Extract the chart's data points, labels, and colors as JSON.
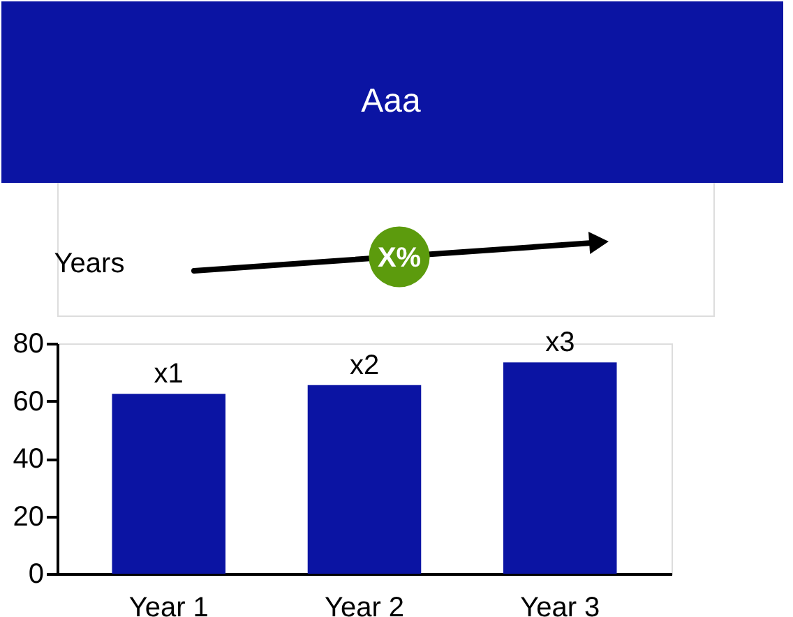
{
  "chart_data": {
    "type": "bar",
    "title": "Aaa",
    "annotations": [
      "Years",
      "X%"
    ],
    "categories": [
      "Year 1",
      "Year 2",
      "Year 3"
    ],
    "values": [
      62.5,
      65.5,
      73.4
    ],
    "value_labels": [
      "x1",
      "x2",
      "x3"
    ],
    "color": "#0b14a3",
    "ylim": [
      0,
      80
    ],
    "yticks": [
      0,
      20,
      40,
      60,
      80
    ]
  }
}
